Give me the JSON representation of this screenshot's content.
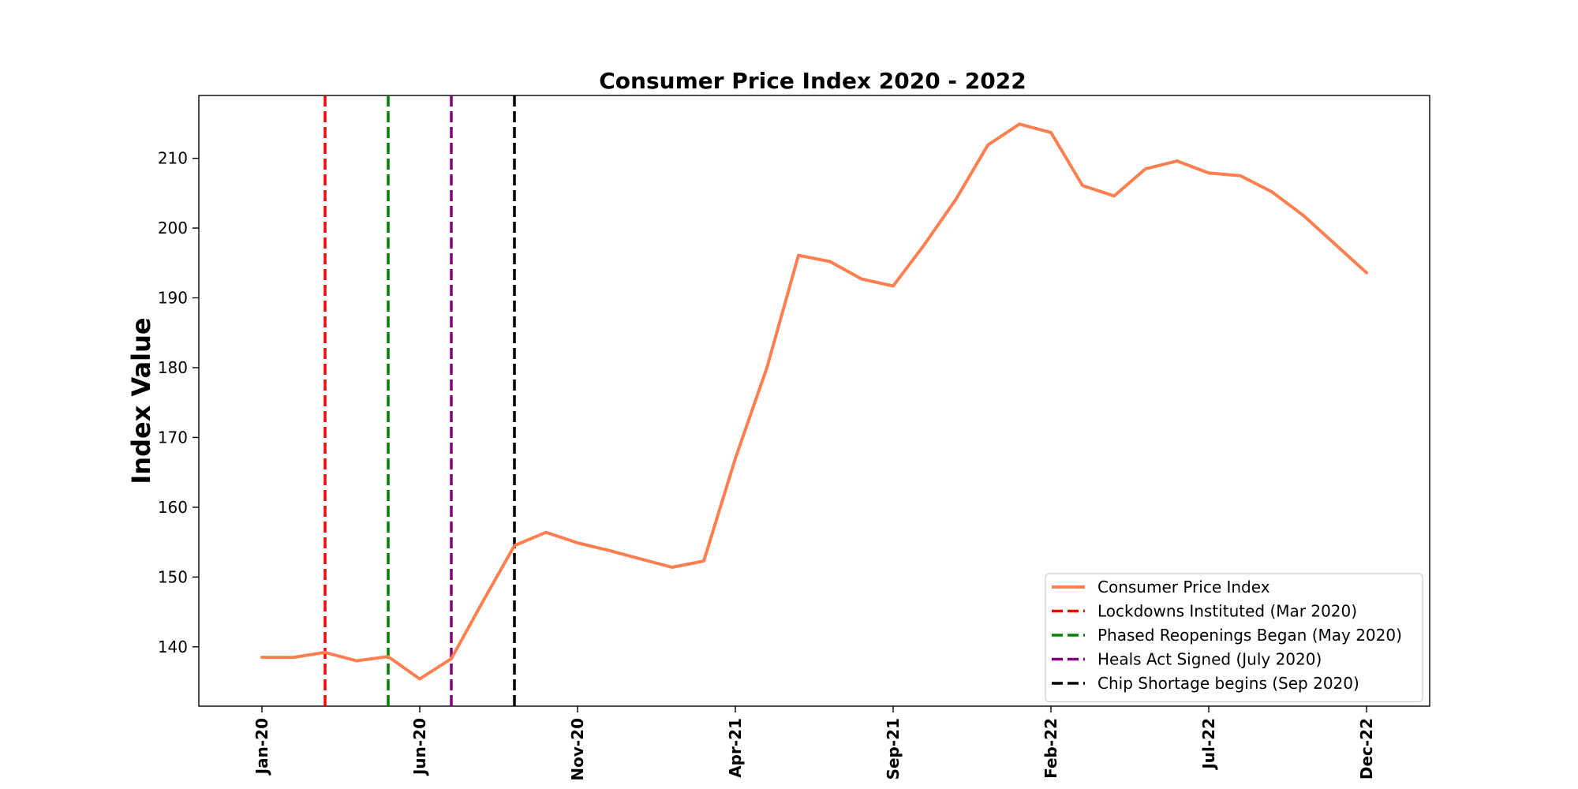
{
  "chart_data": {
    "type": "line",
    "title": "Consumer Price Index 2020 - 2022",
    "xlabel": "",
    "ylabel": "Index Value",
    "x_tick_labels": [
      "Jan-20",
      "Jun-20",
      "Nov-20",
      "Apr-21",
      "Sep-21",
      "Feb-22",
      "Jul-22",
      "Dec-22"
    ],
    "x_tick_dates": [
      "2020-01",
      "2020-06",
      "2020-11",
      "2021-04",
      "2021-09",
      "2022-02",
      "2022-07",
      "2022-12"
    ],
    "xlim": [
      "2019-11",
      "2023-02"
    ],
    "ylim": [
      131.5,
      219
    ],
    "y_ticks": [
      140,
      150,
      160,
      170,
      180,
      190,
      200,
      210
    ],
    "grid": false,
    "legend_position": "lower right",
    "series": [
      {
        "name": "Consumer Price Index",
        "color": "#ff7f50",
        "x": [
          "2020-01",
          "2020-02",
          "2020-03",
          "2020-04",
          "2020-05",
          "2020-06",
          "2020-07",
          "2020-08",
          "2020-09",
          "2020-10",
          "2020-11",
          "2020-12",
          "2021-01",
          "2021-02",
          "2021-03",
          "2021-04",
          "2021-05",
          "2021-06",
          "2021-07",
          "2021-08",
          "2021-09",
          "2021-10",
          "2021-11",
          "2021-12",
          "2022-01",
          "2022-02",
          "2022-03",
          "2022-04",
          "2022-05",
          "2022-06",
          "2022-07",
          "2022-08",
          "2022-09",
          "2022-10",
          "2022-11",
          "2022-12"
        ],
        "values": [
          138.5,
          138.5,
          139.2,
          138.0,
          138.6,
          135.4,
          138.3,
          146.5,
          154.5,
          156.4,
          154.9,
          153.8,
          152.6,
          151.4,
          152.3,
          167.0,
          180.0,
          196.1,
          195.2,
          192.7,
          191.7,
          197.7,
          204.2,
          211.9,
          214.9,
          213.7,
          206.1,
          204.6,
          208.5,
          209.6,
          207.9,
          207.5,
          205.2,
          201.8,
          197.7,
          193.6
        ]
      }
    ],
    "events": [
      {
        "label": "Lockdowns Instituted (Mar 2020)",
        "x": "2020-03",
        "color": "#ff0000"
      },
      {
        "label": "Phased Reopenings Began (May 2020)",
        "x": "2020-05",
        "color": "#008000"
      },
      {
        "label": "Heals Act Signed (July 2020)",
        "x": "2020-07",
        "color": "#800080"
      },
      {
        "label": "Chip Shortage begins (Sep 2020)",
        "x": "2020-09",
        "color": "#000000"
      }
    ]
  }
}
